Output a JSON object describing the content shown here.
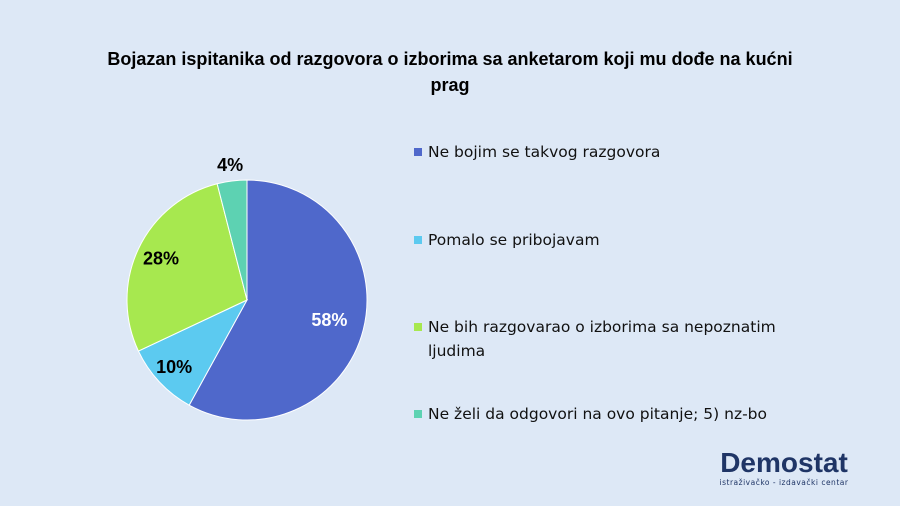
{
  "chart_data": {
    "type": "pie",
    "title": "Bojazan ispitanika od razgovora o izborima sa anketarom koji mu dođe na kućni prag",
    "categories": [
      "Ne bojim se takvog razgovora",
      "Pomalo se pribojavam",
      "Ne bih razgovarao o izborima sa nepoznatim ljudima",
      "Ne želi da odgovori na ovo pitanje; 5) nz-bo"
    ],
    "values": [
      58,
      10,
      28,
      4
    ],
    "value_labels": [
      "58%",
      "10%",
      "28%",
      "4%"
    ],
    "colors": [
      "#4f68cb",
      "#5ccaf0",
      "#a7e84f",
      "#5dd2b2"
    ],
    "legend": "right"
  },
  "logo": {
    "name": "Demostat",
    "subtitle": "istraživačko - izdavački centar"
  }
}
